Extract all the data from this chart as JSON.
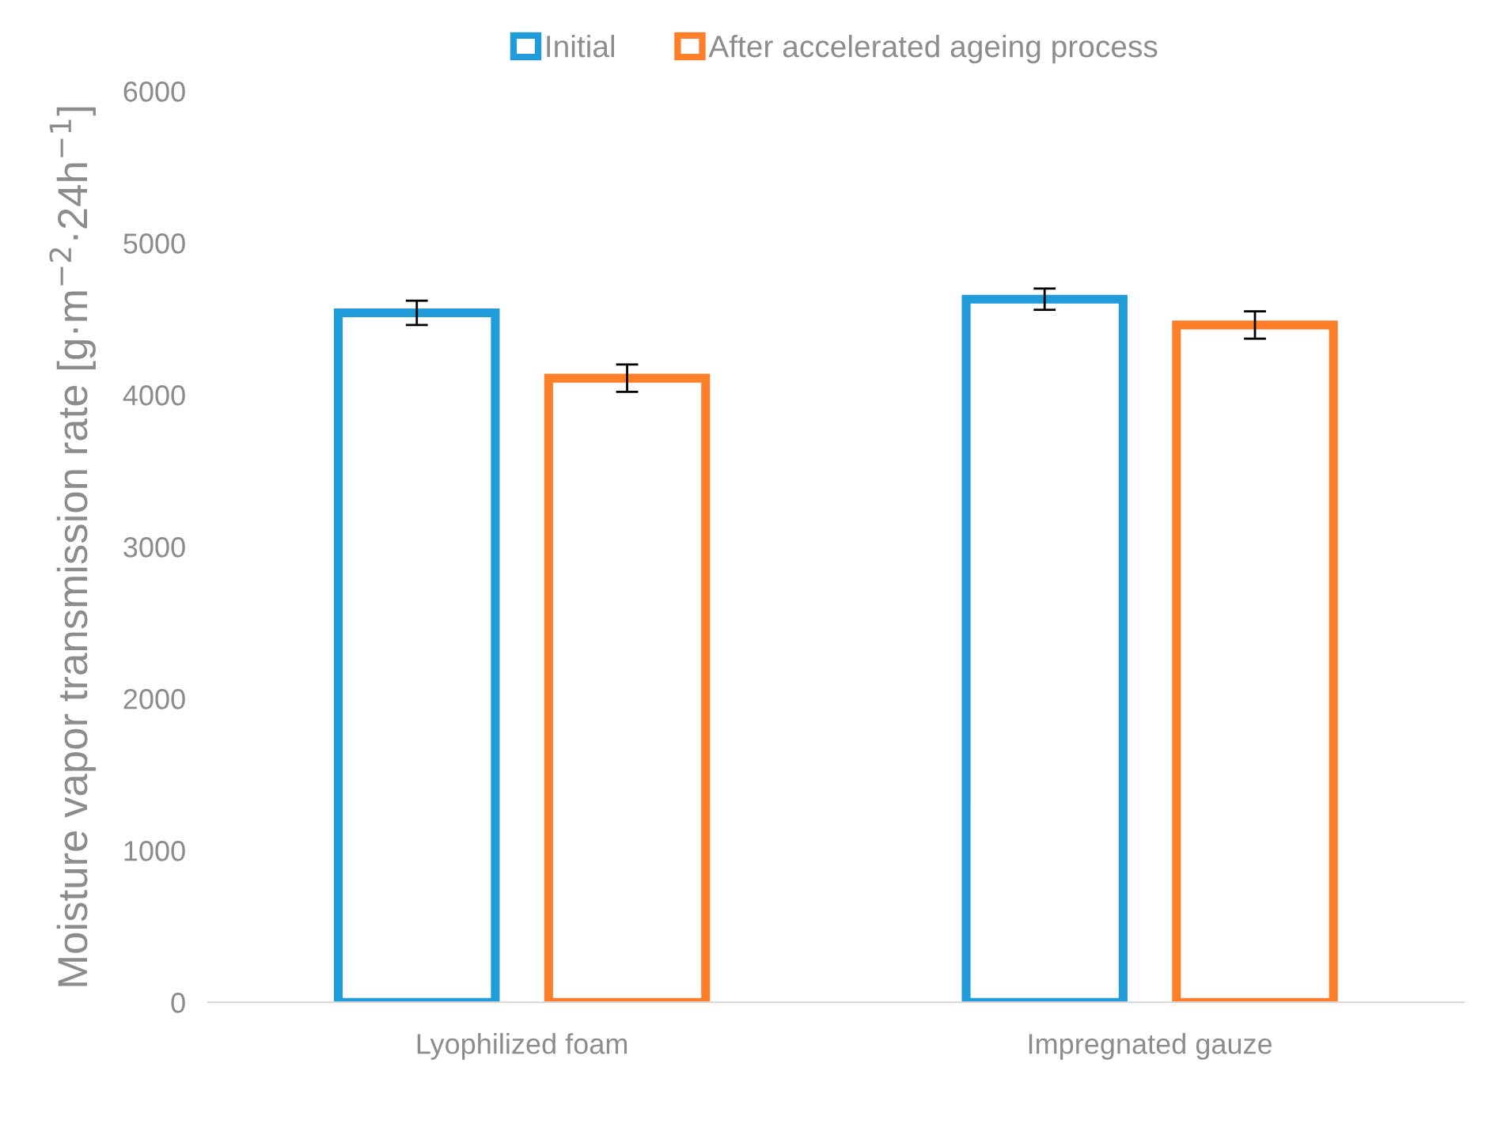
{
  "chart_data": {
    "type": "bar",
    "ylabel": "Moisture vapor transmission rate [g·m$^{−2}$·24h$^{−1}$]",
    "categories": [
      "Lyophilized foam",
      "Impregnated gauze"
    ],
    "series": [
      {
        "name": "Initial",
        "color": "#1f9cd9",
        "values": [
          4540,
          4630
        ],
        "errors": [
          80,
          70
        ]
      },
      {
        "name": "After accelerated ageing process",
        "color": "#fd7f2a",
        "values": [
          4110,
          4460
        ],
        "errors": [
          90,
          90
        ]
      }
    ],
    "ylim": [
      0,
      6000
    ],
    "yticks": [
      0,
      1000,
      2000,
      3000,
      4000,
      5000,
      6000
    ],
    "grid": false,
    "legend": "top"
  }
}
